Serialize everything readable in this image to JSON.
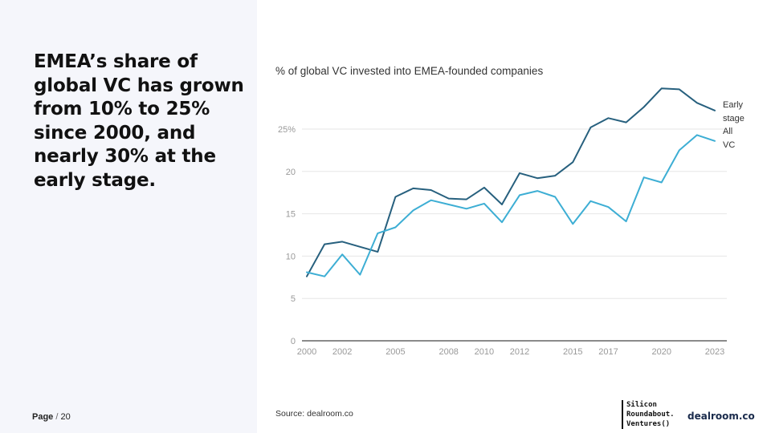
{
  "slide": {
    "headline": "EMEA’s share of global VC has grown from 10% to 25% since 2000, and nearly 30% at the early stage.",
    "page_word": "Page",
    "page_separator": "/",
    "page_number": "20",
    "source": "Source: dealroom.co",
    "logos": {
      "silicon_roundabout": [
        "Silicon",
        "Roundabout.",
        "Ventures()"
      ],
      "dealroom": "dealroom.co"
    }
  },
  "chart_data": {
    "type": "line",
    "title": "% of global VC invested into EMEA-founded companies",
    "xlabel": "",
    "ylabel": "",
    "x": [
      2000,
      2001,
      2002,
      2003,
      2004,
      2005,
      2006,
      2007,
      2008,
      2009,
      2010,
      2011,
      2012,
      2013,
      2014,
      2015,
      2016,
      2017,
      2018,
      2019,
      2020,
      2021,
      2022,
      2023
    ],
    "x_ticks": [
      2000,
      2002,
      2005,
      2008,
      2010,
      2012,
      2015,
      2017,
      2020,
      2023
    ],
    "x_tick_labels": [
      "2000",
      "2002",
      "2005",
      "2008",
      "2010",
      "2012",
      "2015",
      "2017",
      "2020",
      "2023"
    ],
    "xlim": [
      2000,
      2023
    ],
    "y_ticks": [
      0,
      5,
      10,
      15,
      20,
      25
    ],
    "y_tick_labels": [
      "0",
      "5",
      "10",
      "15",
      "20",
      "25%"
    ],
    "ylim": [
      0,
      30
    ],
    "grid": true,
    "legend": "inline at line ends",
    "series": [
      {
        "name": "Early stage",
        "label_lines": [
          "Early",
          "stage"
        ],
        "color": "#27607e",
        "values": [
          7.6,
          11.4,
          11.7,
          11.1,
          10.5,
          17.0,
          18.0,
          17.8,
          16.8,
          16.7,
          18.1,
          16.1,
          19.8,
          19.2,
          19.5,
          21.1,
          25.2,
          26.3,
          25.8,
          27.6,
          29.8,
          29.7,
          28.1,
          27.2
        ]
      },
      {
        "name": "All VC",
        "label_lines": [
          "All",
          "VC"
        ],
        "color": "#3daed4",
        "values": [
          8.1,
          7.6,
          10.2,
          7.8,
          12.7,
          13.4,
          15.4,
          16.6,
          16.1,
          15.6,
          16.2,
          14.0,
          17.2,
          17.7,
          17.0,
          13.8,
          16.5,
          15.8,
          14.1,
          19.3,
          18.7,
          22.5,
          24.3,
          23.6
        ]
      }
    ]
  }
}
